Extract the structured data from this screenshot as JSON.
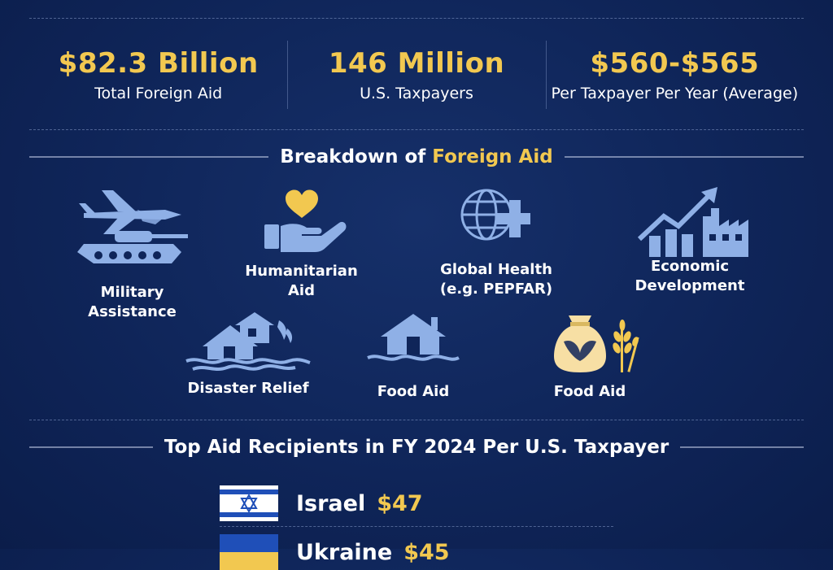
{
  "stats": [
    {
      "value": "$82.3 Billion",
      "label": "Total Foreign Aid"
    },
    {
      "value": "146 Million",
      "label": "U.S. Taxpayers"
    },
    {
      "value": "$560-$565",
      "label": "Per Taxpayer Per Year (Average)"
    }
  ],
  "breakdown": {
    "title_prefix": "Breakdown of ",
    "title_highlight": "Foreign Aid",
    "items": [
      {
        "label": "Military Assistance",
        "icon": "military-icon"
      },
      {
        "label": "Humanitarian Aid",
        "icon": "humanitarian-icon"
      },
      {
        "label_line1": "Global Health",
        "label_line2": "(e.g. PEPFAR)",
        "icon": "global-health-icon"
      },
      {
        "label": "Economic Development",
        "icon": "economic-development-icon"
      },
      {
        "label": "Disaster Relief",
        "icon": "disaster-relief-icon"
      },
      {
        "label": "Food Aid",
        "icon": "flood-house-icon"
      },
      {
        "label": "Food Aid",
        "icon": "food-sack-icon"
      }
    ]
  },
  "recipients": {
    "title": "Top Aid Recipients in FY 2024 Per U.S. Taxpayer",
    "items": [
      {
        "country": "Israel",
        "amount": "$47",
        "flag": "israel-flag"
      },
      {
        "country": "Ukraine",
        "amount": "$45",
        "flag": "ukraine-flag"
      }
    ]
  },
  "colors": {
    "background": "#0f2559",
    "accent": "#f2c850",
    "icon": "#8fb0e6"
  }
}
